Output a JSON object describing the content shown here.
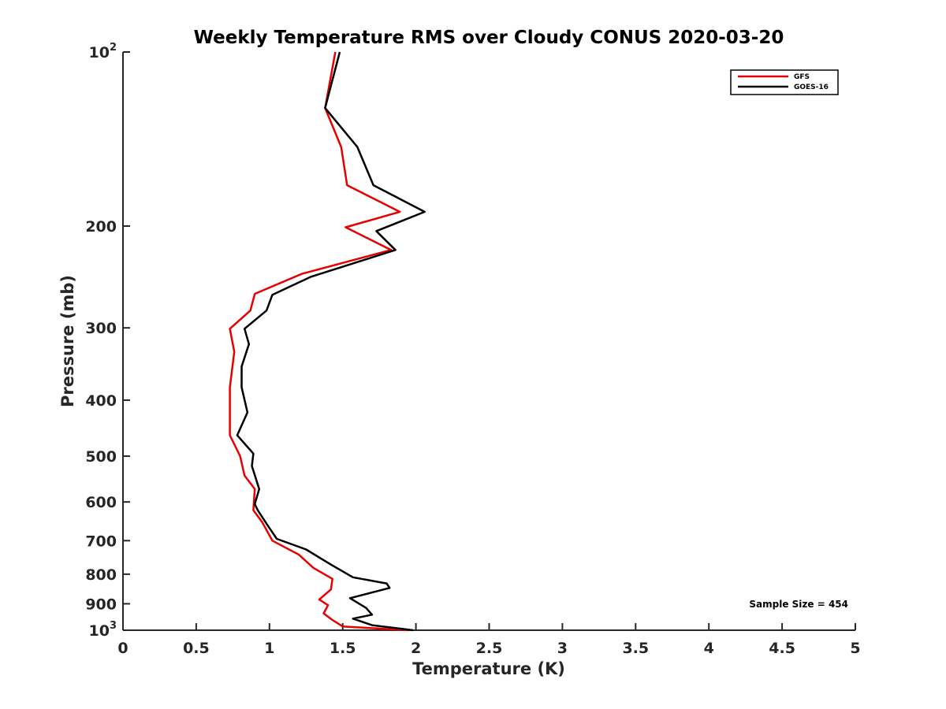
{
  "chart_data": {
    "type": "line",
    "title": "Weekly Temperature RMS over Cloudy CONUS 2020-03-20",
    "xlabel": "Temperature (K)",
    "ylabel": "Pressure (mb)",
    "xlim": [
      0,
      5
    ],
    "ylim": [
      100,
      1000
    ],
    "yscale": "log",
    "y_reversed": true,
    "x_ticks": [
      0,
      0.5,
      1,
      1.5,
      2,
      2.5,
      3,
      3.5,
      4,
      4.5,
      5
    ],
    "x_tick_labels": [
      "0",
      "0.5",
      "1",
      "1.5",
      "2",
      "2.5",
      "3",
      "3.5",
      "4",
      "4.5",
      "5"
    ],
    "y_ticks": [
      {
        "value": 100,
        "base": "10",
        "exp": "2"
      },
      {
        "value": 200,
        "label": "200"
      },
      {
        "value": 300,
        "label": "300"
      },
      {
        "value": 400,
        "label": "400"
      },
      {
        "value": 500,
        "label": "500"
      },
      {
        "value": 600,
        "label": "600"
      },
      {
        "value": 700,
        "label": "700"
      },
      {
        "value": 800,
        "label": "800"
      },
      {
        "value": 900,
        "label": "900"
      },
      {
        "value": 1000,
        "base": "10",
        "exp": "3"
      }
    ],
    "grid": false,
    "legend_position": "top-right",
    "series": [
      {
        "name": "GFS",
        "color": "#e60000",
        "points": [
          [
            1.45,
            100
          ],
          [
            1.38,
            125
          ],
          [
            1.49,
            146
          ],
          [
            1.53,
            170
          ],
          [
            1.89,
            189
          ],
          [
            1.52,
            201
          ],
          [
            1.83,
            220
          ],
          [
            1.22,
            242
          ],
          [
            0.9,
            262
          ],
          [
            0.87,
            280
          ],
          [
            0.73,
            301
          ],
          [
            0.76,
            330
          ],
          [
            0.73,
            380
          ],
          [
            0.73,
            420
          ],
          [
            0.73,
            460
          ],
          [
            0.8,
            500
          ],
          [
            0.83,
            540
          ],
          [
            0.9,
            570
          ],
          [
            0.89,
            620
          ],
          [
            0.95,
            650
          ],
          [
            1.02,
            700
          ],
          [
            1.2,
            740
          ],
          [
            1.3,
            780
          ],
          [
            1.43,
            815
          ],
          [
            1.42,
            850
          ],
          [
            1.34,
            885
          ],
          [
            1.4,
            905
          ],
          [
            1.37,
            935
          ],
          [
            1.43,
            960
          ],
          [
            1.5,
            985
          ],
          [
            1.95,
            1000
          ]
        ]
      },
      {
        "name": "GOES-16",
        "color": "#000000",
        "points": [
          [
            1.48,
            100
          ],
          [
            1.38,
            125
          ],
          [
            1.6,
            146
          ],
          [
            1.71,
            170
          ],
          [
            2.06,
            189
          ],
          [
            1.73,
            204
          ],
          [
            1.86,
            220
          ],
          [
            1.28,
            245
          ],
          [
            1.02,
            263
          ],
          [
            0.98,
            280
          ],
          [
            0.83,
            301
          ],
          [
            0.86,
            320
          ],
          [
            0.81,
            350
          ],
          [
            0.81,
            380
          ],
          [
            0.85,
            420
          ],
          [
            0.78,
            460
          ],
          [
            0.89,
            495
          ],
          [
            0.88,
            520
          ],
          [
            0.93,
            570
          ],
          [
            0.9,
            605
          ],
          [
            0.92,
            620
          ],
          [
            0.99,
            660
          ],
          [
            1.05,
            695
          ],
          [
            1.25,
            725
          ],
          [
            1.42,
            770
          ],
          [
            1.57,
            810
          ],
          [
            1.8,
            830
          ],
          [
            1.82,
            845
          ],
          [
            1.55,
            880
          ],
          [
            1.66,
            915
          ],
          [
            1.7,
            940
          ],
          [
            1.57,
            955
          ],
          [
            1.7,
            980
          ],
          [
            1.98,
            1000
          ]
        ]
      }
    ],
    "annotation": "Sample Size = 454"
  }
}
